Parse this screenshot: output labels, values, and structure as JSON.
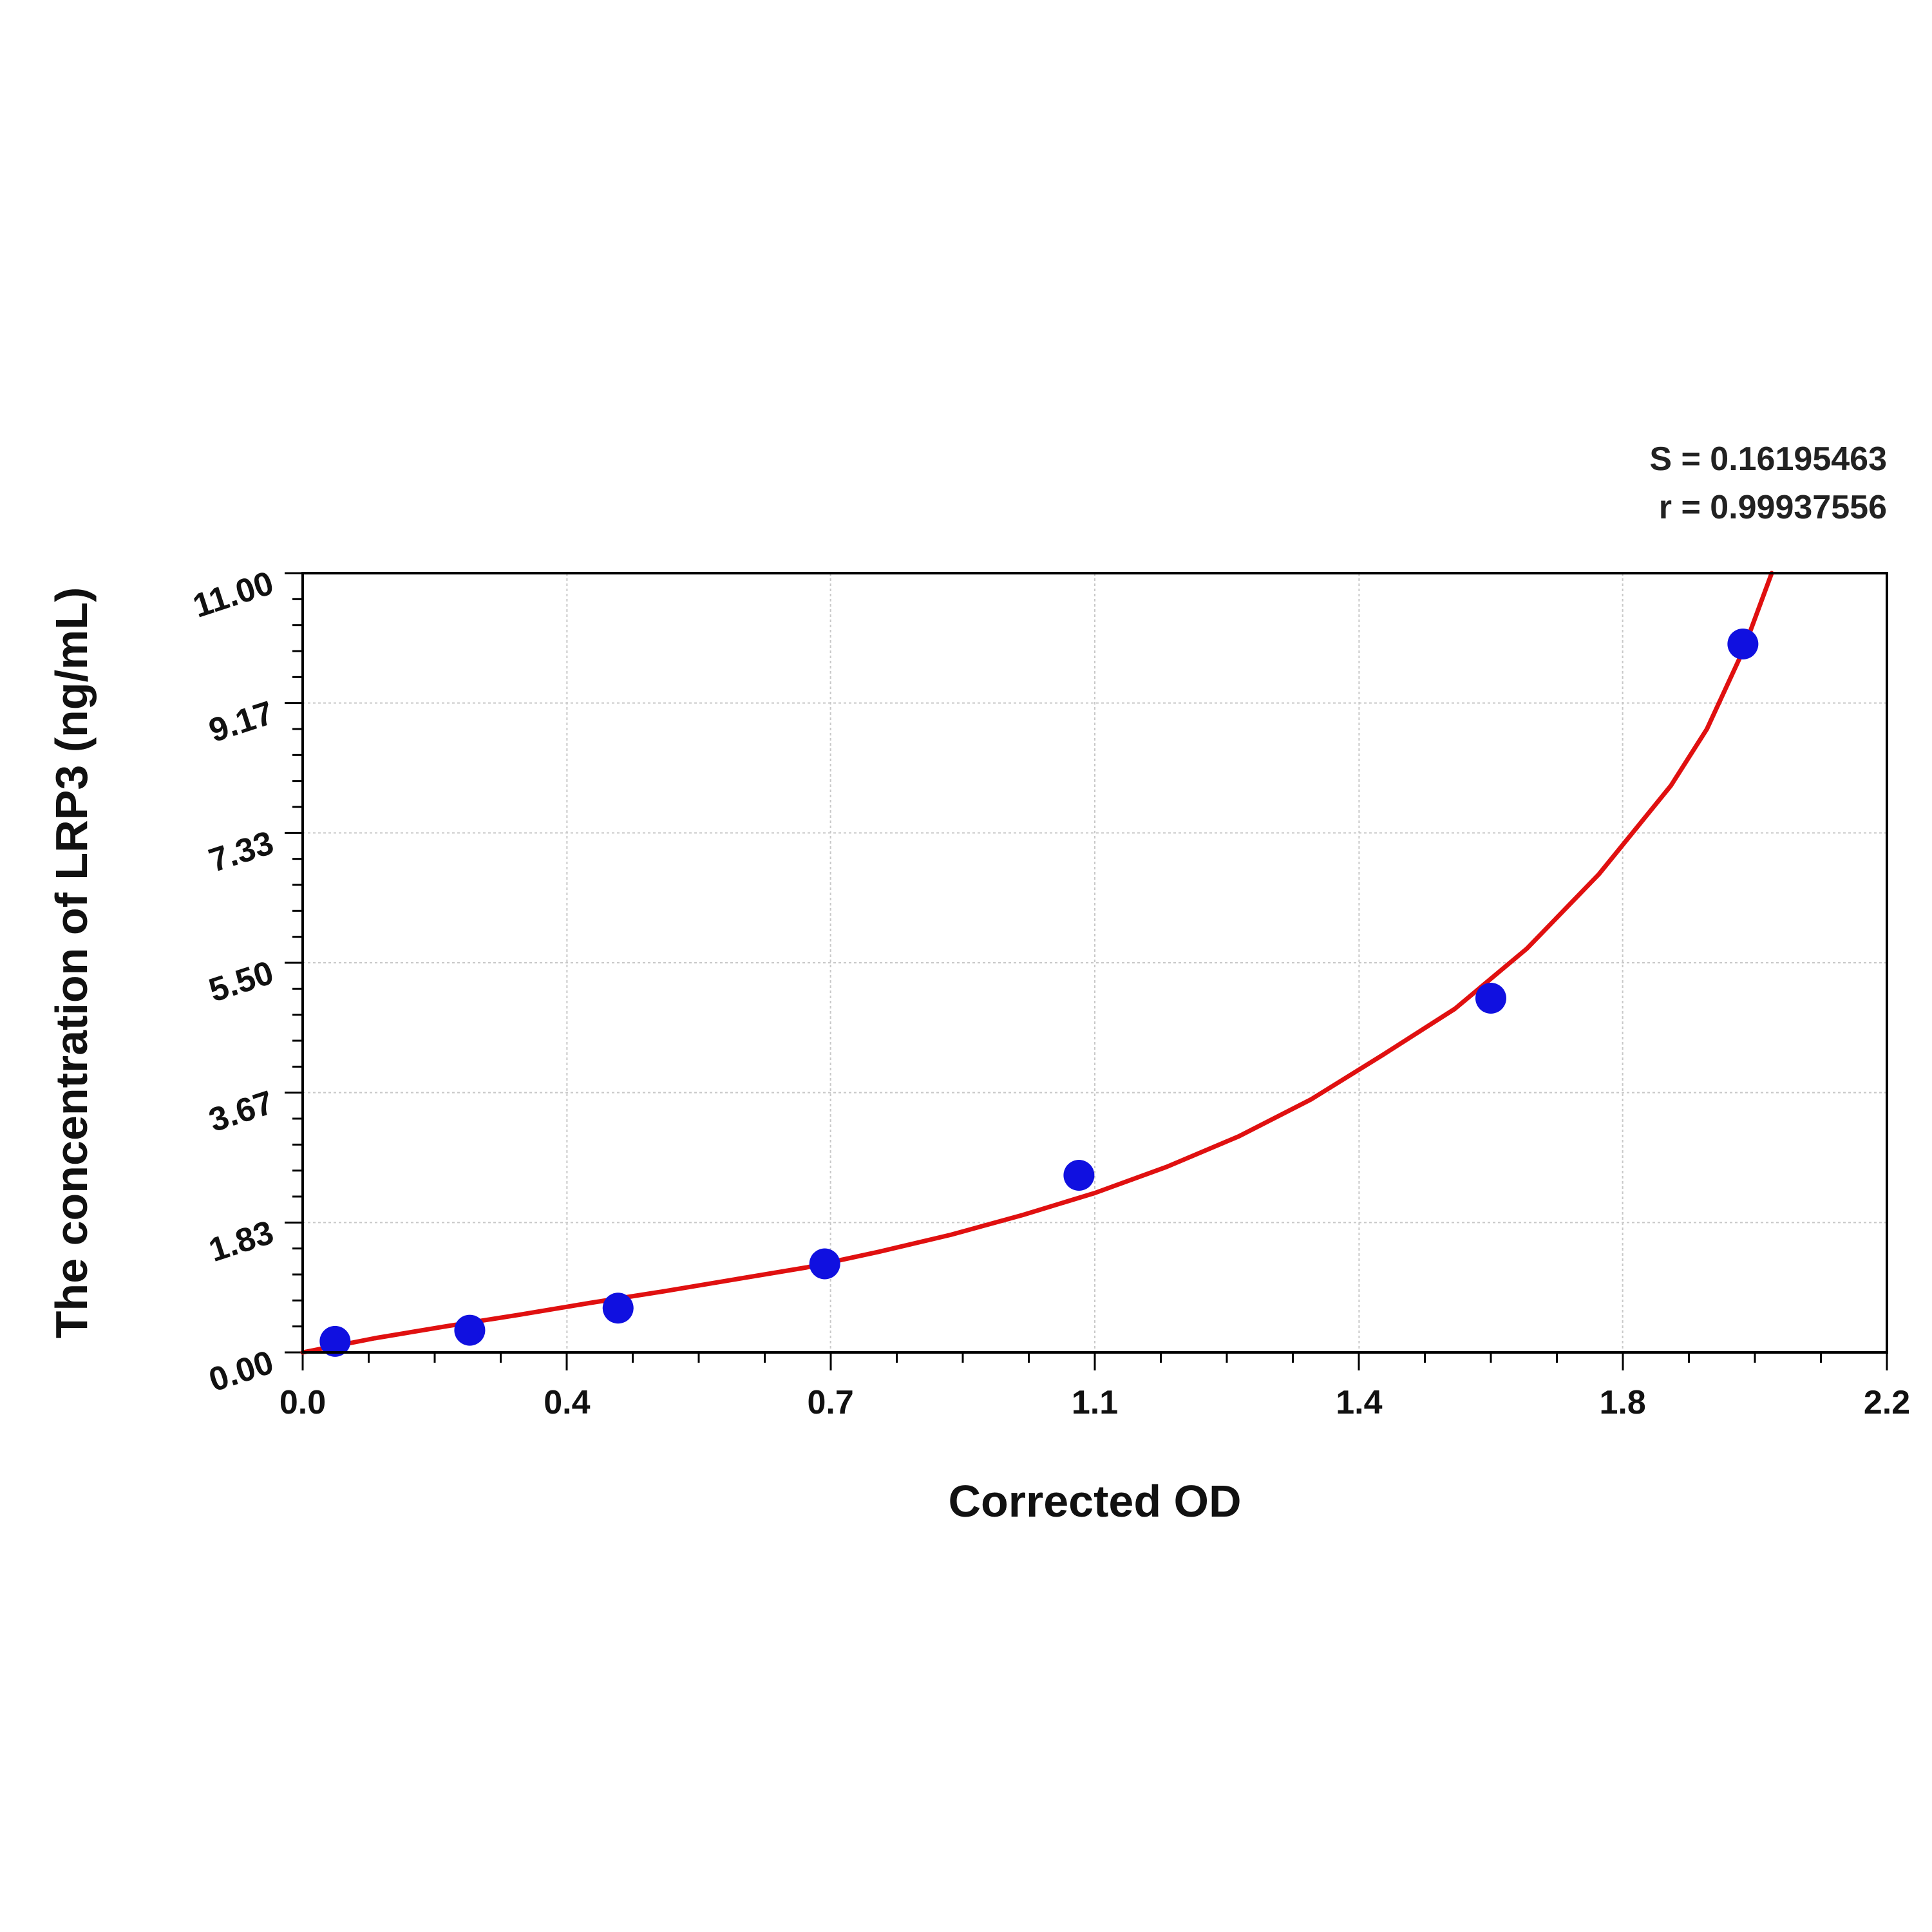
{
  "chart_data": {
    "type": "scatter",
    "title": "",
    "xlabel": "Corrected OD",
    "ylabel": "The concentration of LRP3 (ng/mL)",
    "xlim": [
      0.0,
      2.2
    ],
    "ylim": [
      0.0,
      11.0
    ],
    "x_ticks": [
      "0.0",
      "0.4",
      "0.7",
      "1.1",
      "1.4",
      "1.8",
      "2.2"
    ],
    "x_tick_values": [
      0.0,
      0.367,
      0.733,
      1.1,
      1.467,
      1.833,
      2.2
    ],
    "y_ticks": [
      "0.00",
      "1.83",
      "3.67",
      "5.50",
      "7.33",
      "9.17",
      "11.00"
    ],
    "y_tick_values": [
      0.0,
      1.833,
      3.667,
      5.5,
      7.333,
      9.167,
      11.0
    ],
    "grid": true,
    "stats": {
      "s": "S = 0.16195463",
      "r": "r = 0.99937556"
    },
    "series": [
      {
        "kind": "points",
        "color": "#1010e0",
        "x": [
          0.045,
          0.232,
          0.438,
          0.725,
          1.078,
          1.65,
          2.0
        ],
        "y": [
          0.156,
          0.313,
          0.625,
          1.25,
          2.5,
          5.0,
          10.0
        ]
      },
      {
        "kind": "fitted-curve",
        "color": "#e01010",
        "x": [
          0.0,
          0.1,
          0.2,
          0.3,
          0.4,
          0.5,
          0.6,
          0.7,
          0.8,
          0.9,
          1.0,
          1.1,
          1.2,
          1.3,
          1.4,
          1.5,
          1.6,
          1.7,
          1.8,
          1.9,
          1.95,
          2.0,
          2.04
        ],
        "y": [
          0.0,
          0.2,
          0.37,
          0.53,
          0.7,
          0.86,
          1.03,
          1.2,
          1.42,
          1.66,
          1.94,
          2.25,
          2.62,
          3.05,
          3.57,
          4.2,
          4.85,
          5.7,
          6.75,
          8.0,
          8.8,
          9.9,
          11.0
        ]
      }
    ]
  }
}
